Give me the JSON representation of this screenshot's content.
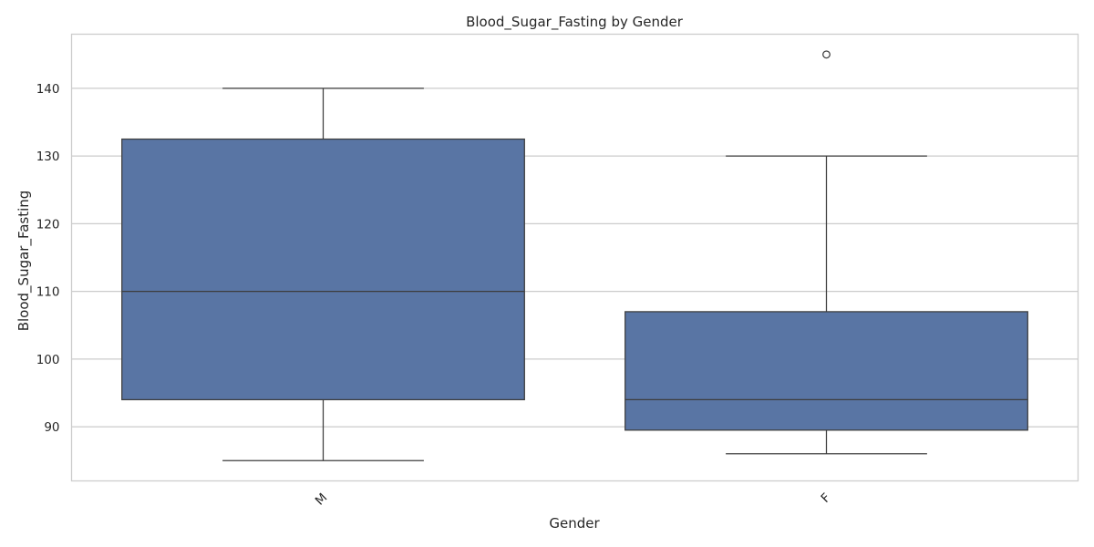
{
  "chart_data": {
    "type": "box",
    "title": "Blood_Sugar_Fasting by Gender",
    "xlabel": "Gender",
    "ylabel": "Blood_Sugar_Fasting",
    "categories": [
      "M",
      "F"
    ],
    "ylim": [
      82,
      148
    ],
    "yticks": [
      90,
      100,
      110,
      120,
      130,
      140
    ],
    "grid": "y",
    "boxes": [
      {
        "category": "M",
        "whisker_low": 85,
        "q1": 94,
        "median": 110,
        "q3": 132.5,
        "whisker_high": 140,
        "outliers": []
      },
      {
        "category": "F",
        "whisker_low": 86,
        "q1": 89.5,
        "median": 94,
        "q3": 107,
        "whisker_high": 130,
        "outliers": [
          145
        ]
      }
    ],
    "colors": {
      "box_fill": "#5975a4",
      "line": "#3d3d3d",
      "grid": "#cccccc",
      "frame": "#cccccc"
    }
  }
}
